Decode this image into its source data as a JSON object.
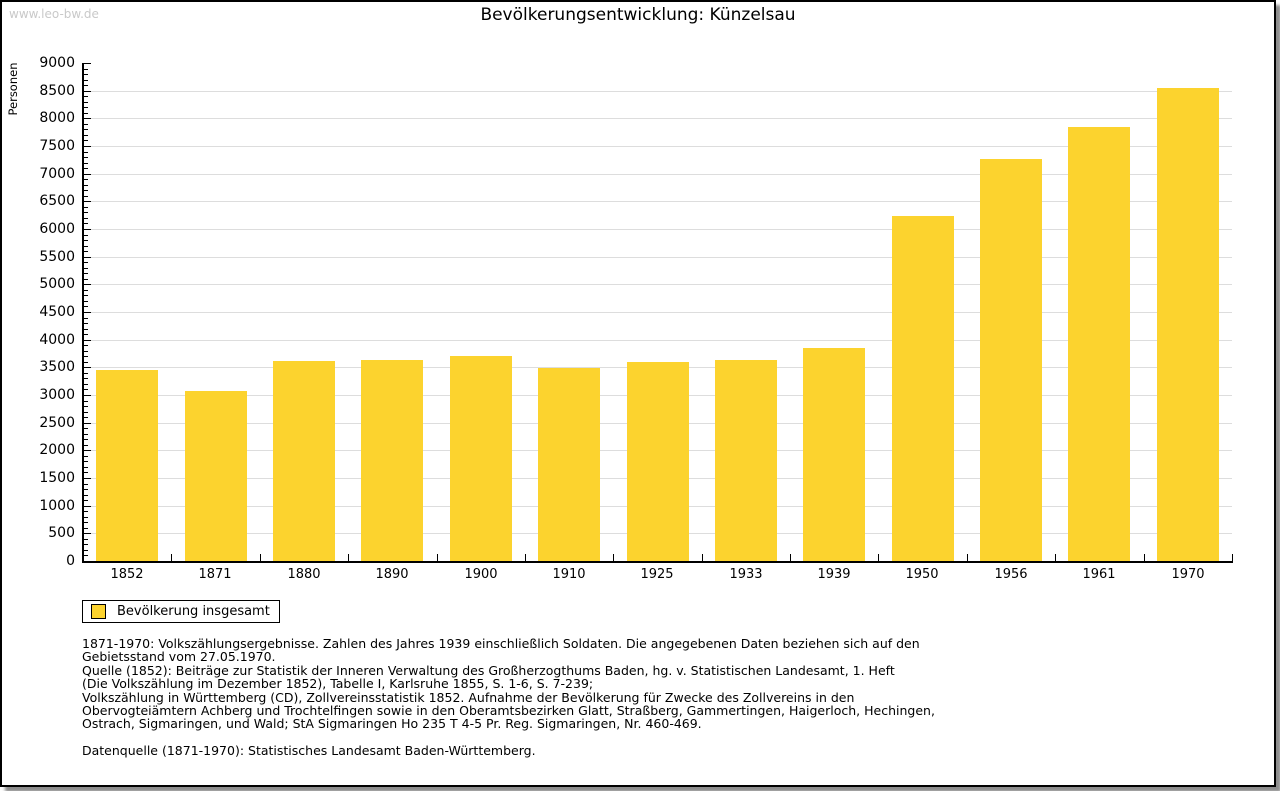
{
  "page": {
    "watermark": "www.leo-bw.de"
  },
  "chart_data": {
    "type": "bar",
    "title": "Bevölkerungsentwicklung: Künzelsau",
    "xlabel": "",
    "ylabel": "Personen",
    "categories": [
      "1852",
      "1871",
      "1880",
      "1890",
      "1900",
      "1910",
      "1925",
      "1933",
      "1939",
      "1950",
      "1956",
      "1961",
      "1970"
    ],
    "series": [
      {
        "name": "Bevölkerung insgesamt",
        "values": [
          3460,
          3080,
          3610,
          3640,
          3700,
          3480,
          3600,
          3640,
          3850,
          6240,
          7270,
          7840,
          8540
        ]
      }
    ],
    "ylim": [
      0,
      9000
    ],
    "y_major_step": 500,
    "y_minor_step": 100,
    "grid": true,
    "legend_position": "bottom-left",
    "bar_color": "#FCD32E",
    "gridline_color": "#dddddd"
  },
  "legend": {
    "swatch_color": "#FCD32E"
  },
  "footnotes": {
    "lines": [
      "1871-1970: Volkszählungsergebnisse. Zahlen des Jahres 1939 einschließlich Soldaten. Die angegebenen Daten beziehen sich auf den",
      "Gebietsstand vom 27.05.1970.",
      "Quelle (1852): Beiträge zur Statistik der Inneren Verwaltung des Großherzogthums Baden, hg. v. Statistischen Landesamt, 1. Heft",
      "(Die Volkszählung im Dezember 1852), Tabelle I, Karlsruhe 1855, S. 1-6, S. 7-239;",
      "Volkszählung in Württemberg (CD), Zollvereinsstatistik 1852. Aufnahme der Bevölkerung für Zwecke des Zollvereins in den",
      "Obervogteiämtern Achberg und Trochtelfingen sowie in den Oberamtsbezirken Glatt, Straßberg, Gammertingen, Haigerloch, Hechingen,",
      "Ostrach, Sigmaringen, und Wald; StA Sigmaringen Ho 235 T 4-5 Pr. Reg. Sigmaringen, Nr. 460-469."
    ],
    "datasource": "Datenquelle (1871-1970): Statistisches Landesamt Baden-Württemberg."
  }
}
